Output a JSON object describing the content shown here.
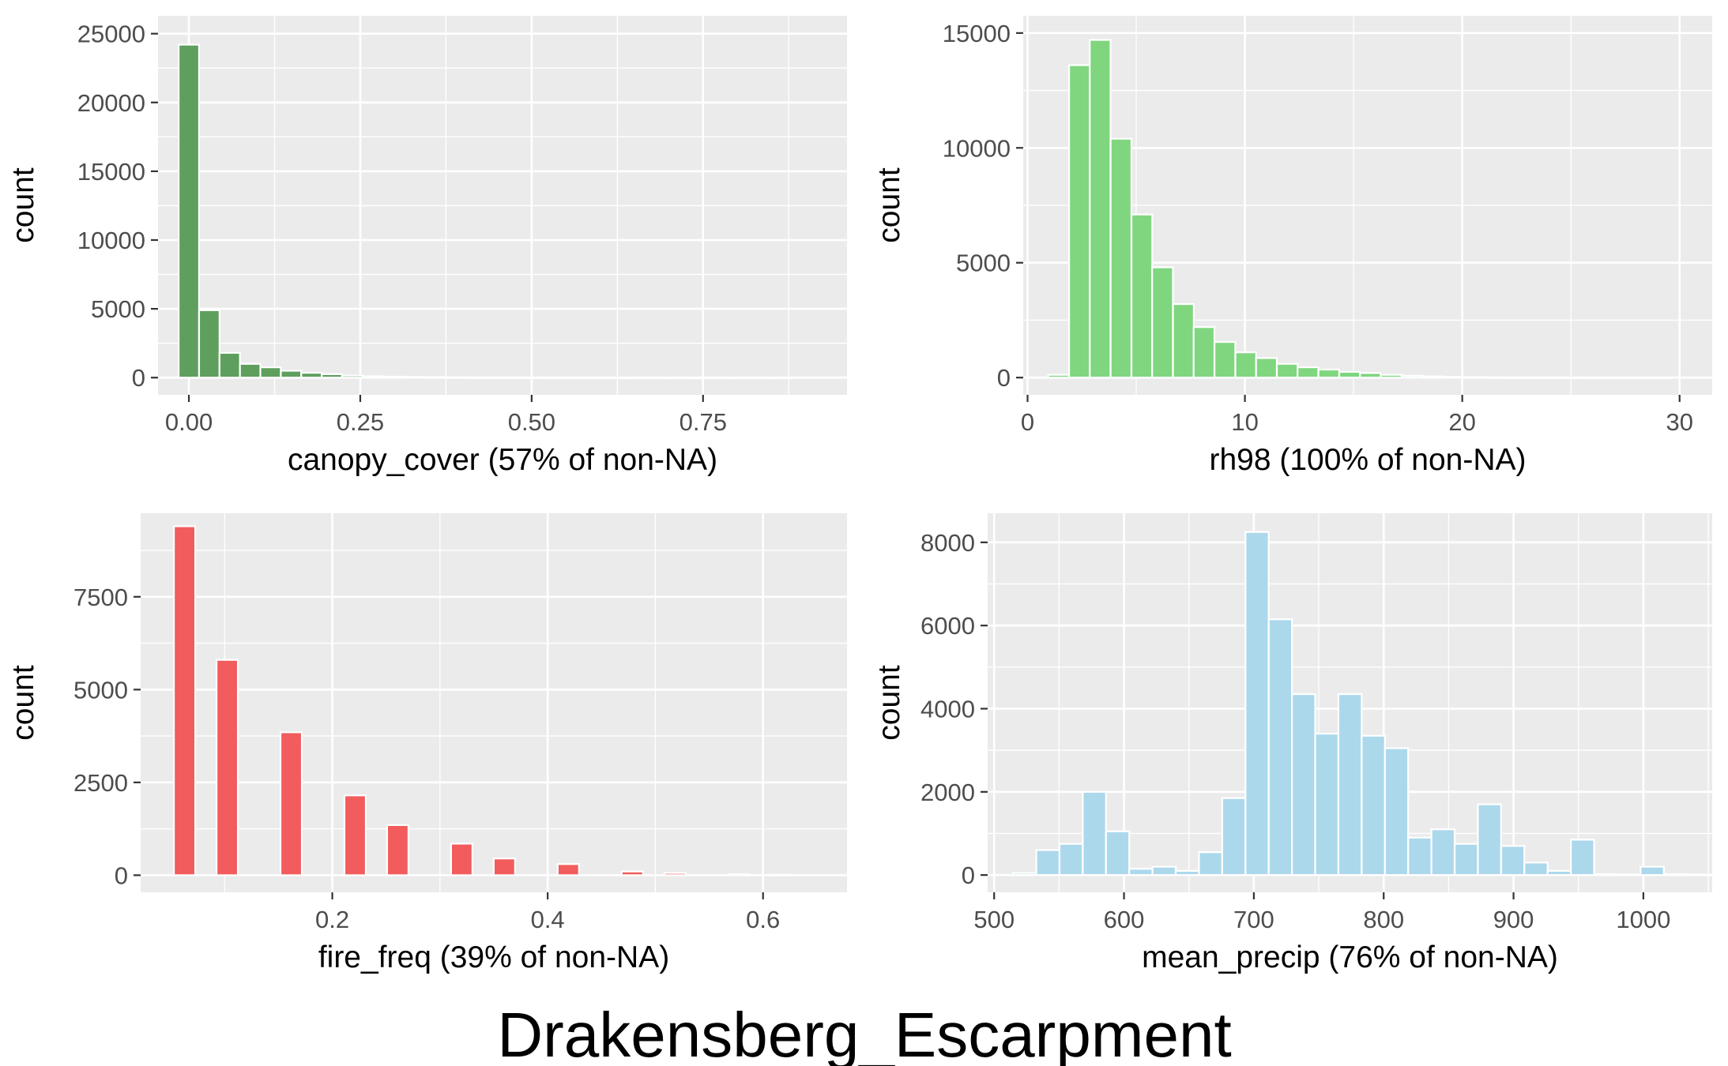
{
  "title": "Drakensberg_Escarpment",
  "chart_data": [
    {
      "type": "bar",
      "xlabel": "canopy_cover (57% of non-NA)",
      "ylabel": "count",
      "color": "#5e9f5e",
      "xlim": [
        -0.045,
        0.96
      ],
      "ylim": [
        -1250,
        26300
      ],
      "xticks": [
        0.0,
        0.25,
        0.5,
        0.75
      ],
      "xtick_labels": [
        "0.00",
        "0.25",
        "0.50",
        "0.75"
      ],
      "yticks": [
        0,
        5000,
        10000,
        15000,
        20000,
        25000
      ],
      "ytick_labels": [
        "0",
        "5000",
        "10000",
        "15000",
        "20000",
        "25000"
      ],
      "bin_width": 0.0298,
      "bins": [
        {
          "x": 0.0,
          "count": 24200
        },
        {
          "x": 0.0298,
          "count": 4900
        },
        {
          "x": 0.0596,
          "count": 1800
        },
        {
          "x": 0.0894,
          "count": 1000
        },
        {
          "x": 0.1192,
          "count": 750
        },
        {
          "x": 0.149,
          "count": 500
        },
        {
          "x": 0.1788,
          "count": 350
        },
        {
          "x": 0.2086,
          "count": 250
        },
        {
          "x": 0.2384,
          "count": 150
        },
        {
          "x": 0.2682,
          "count": 100
        },
        {
          "x": 0.298,
          "count": 70
        },
        {
          "x": 0.3278,
          "count": 50
        },
        {
          "x": 0.3576,
          "count": 35
        },
        {
          "x": 0.3874,
          "count": 25
        },
        {
          "x": 0.4172,
          "count": 18
        },
        {
          "x": 0.447,
          "count": 12
        },
        {
          "x": 0.4768,
          "count": 8
        },
        {
          "x": 0.5066,
          "count": 6
        },
        {
          "x": 0.5364,
          "count": 4
        },
        {
          "x": 0.5662,
          "count": 3
        },
        {
          "x": 0.596,
          "count": 2
        },
        {
          "x": 0.6258,
          "count": 2
        },
        {
          "x": 0.6556,
          "count": 1
        },
        {
          "x": 0.6854,
          "count": 1
        },
        {
          "x": 0.7152,
          "count": 1
        },
        {
          "x": 0.745,
          "count": 1
        },
        {
          "x": 0.7748,
          "count": 1
        },
        {
          "x": 0.8046,
          "count": 1
        },
        {
          "x": 0.8344,
          "count": 1
        },
        {
          "x": 0.8642,
          "count": 1
        }
      ]
    },
    {
      "type": "bar",
      "xlabel": "rh98 (100% of non-NA)",
      "ylabel": "count",
      "color": "#7fd67f",
      "xlim": [
        -0.2,
        31.5
      ],
      "ylim": [
        -750,
        15750
      ],
      "xticks": [
        0,
        10,
        20,
        30
      ],
      "xtick_labels": [
        "0",
        "10",
        "20",
        "30"
      ],
      "yticks": [
        0,
        5000,
        10000,
        15000
      ],
      "ytick_labels": [
        "0",
        "5000",
        "10000",
        "15000"
      ],
      "bin_width": 0.956,
      "bins": [
        {
          "x": 1.43,
          "count": 120
        },
        {
          "x": 2.39,
          "count": 13600
        },
        {
          "x": 3.34,
          "count": 14700
        },
        {
          "x": 4.3,
          "count": 10400
        },
        {
          "x": 5.26,
          "count": 7100
        },
        {
          "x": 6.21,
          "count": 4800
        },
        {
          "x": 7.17,
          "count": 3200
        },
        {
          "x": 8.12,
          "count": 2200
        },
        {
          "x": 9.08,
          "count": 1550
        },
        {
          "x": 10.04,
          "count": 1100
        },
        {
          "x": 10.99,
          "count": 850
        },
        {
          "x": 11.95,
          "count": 600
        },
        {
          "x": 12.9,
          "count": 450
        },
        {
          "x": 13.86,
          "count": 350
        },
        {
          "x": 14.82,
          "count": 250
        },
        {
          "x": 15.77,
          "count": 200
        },
        {
          "x": 16.73,
          "count": 120
        },
        {
          "x": 17.69,
          "count": 80
        },
        {
          "x": 18.64,
          "count": 50
        },
        {
          "x": 19.6,
          "count": 30
        },
        {
          "x": 20.56,
          "count": 20
        },
        {
          "x": 21.51,
          "count": 12
        },
        {
          "x": 22.47,
          "count": 8
        },
        {
          "x": 23.42,
          "count": 5
        },
        {
          "x": 24.38,
          "count": 3
        },
        {
          "x": 25.34,
          "count": 2
        },
        {
          "x": 26.29,
          "count": 1
        },
        {
          "x": 27.25,
          "count": 1
        },
        {
          "x": 28.21,
          "count": 1
        },
        {
          "x": 29.16,
          "count": 1
        }
      ]
    },
    {
      "type": "bar",
      "xlabel": "fire_freq (39% of non-NA)",
      "ylabel": "count",
      "color": "#f25c5c",
      "xlim": [
        0.022,
        0.678
      ],
      "ylim": [
        -460,
        9750
      ],
      "xticks": [
        0.2,
        0.4,
        0.6
      ],
      "xtick_labels": [
        "0.2",
        "0.4",
        "0.6"
      ],
      "yticks": [
        0,
        2500,
        5000,
        7500
      ],
      "ytick_labels": [
        "0",
        "2500",
        "5000",
        "7500"
      ],
      "bin_width": 0.0198,
      "bins": [
        {
          "x": 0.0628,
          "count": 9400
        },
        {
          "x": 0.1024,
          "count": 5800
        },
        {
          "x": 0.1618,
          "count": 3850
        },
        {
          "x": 0.2212,
          "count": 2150
        },
        {
          "x": 0.2608,
          "count": 1350
        },
        {
          "x": 0.3202,
          "count": 850
        },
        {
          "x": 0.3598,
          "count": 450
        },
        {
          "x": 0.4192,
          "count": 300
        },
        {
          "x": 0.4786,
          "count": 100
        },
        {
          "x": 0.5182,
          "count": 60
        },
        {
          "x": 0.5776,
          "count": 25
        },
        {
          "x": 0.6172,
          "count": 12
        }
      ]
    },
    {
      "type": "bar",
      "xlabel": "mean_precip (76% of non-NA)",
      "ylabel": "count",
      "color": "#acd8ec",
      "xlim": [
        495,
        1053
      ],
      "ylim": [
        -415,
        8700
      ],
      "xticks": [
        500,
        600,
        700,
        800,
        900,
        1000
      ],
      "xtick_labels": [
        "500",
        "600",
        "700",
        "800",
        "900",
        "1000"
      ],
      "yticks": [
        0,
        2000,
        4000,
        6000,
        8000
      ],
      "ytick_labels": [
        "0",
        "2000",
        "4000",
        "6000",
        "8000"
      ],
      "bin_width": 17.9,
      "bins": [
        {
          "x": 523.5,
          "count": 50
        },
        {
          "x": 541.4,
          "count": 600
        },
        {
          "x": 559.3,
          "count": 750
        },
        {
          "x": 577.2,
          "count": 2000
        },
        {
          "x": 595.1,
          "count": 1050
        },
        {
          "x": 613.0,
          "count": 150
        },
        {
          "x": 630.9,
          "count": 200
        },
        {
          "x": 648.8,
          "count": 100
        },
        {
          "x": 666.7,
          "count": 550
        },
        {
          "x": 684.6,
          "count": 1850
        },
        {
          "x": 702.5,
          "count": 8250
        },
        {
          "x": 720.4,
          "count": 6150
        },
        {
          "x": 738.3,
          "count": 4350
        },
        {
          "x": 756.2,
          "count": 3400
        },
        {
          "x": 774.1,
          "count": 4350
        },
        {
          "x": 792.0,
          "count": 3350
        },
        {
          "x": 809.9,
          "count": 3050
        },
        {
          "x": 827.8,
          "count": 900
        },
        {
          "x": 845.7,
          "count": 1100
        },
        {
          "x": 863.6,
          "count": 750
        },
        {
          "x": 881.5,
          "count": 1700
        },
        {
          "x": 899.4,
          "count": 700
        },
        {
          "x": 917.3,
          "count": 300
        },
        {
          "x": 935.2,
          "count": 100
        },
        {
          "x": 953.1,
          "count": 850
        },
        {
          "x": 971.0,
          "count": 20
        },
        {
          "x": 988.9,
          "count": 15
        },
        {
          "x": 1006.8,
          "count": 200
        },
        {
          "x": 1024.7,
          "count": 20
        },
        {
          "x": 1042.6,
          "count": 10
        }
      ]
    }
  ]
}
